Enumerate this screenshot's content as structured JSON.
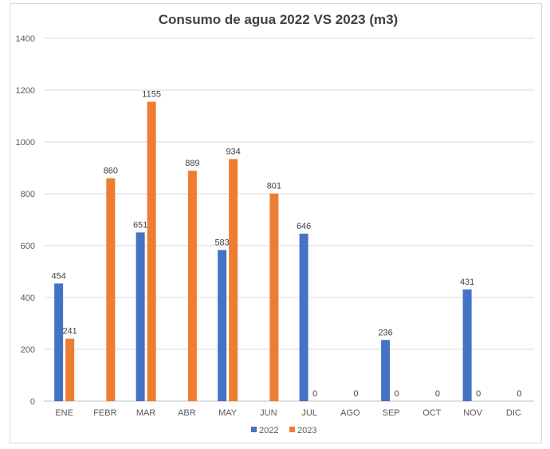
{
  "chart_data": {
    "type": "bar",
    "title": "Consumo de agua 2022 VS 2023 (m3)",
    "xlabel": "",
    "ylabel": "",
    "ylim": [
      0,
      1400
    ],
    "yticks": [
      0,
      200,
      400,
      600,
      800,
      1000,
      1200,
      1400
    ],
    "grid": true,
    "legend": "bottom",
    "categories": [
      "ENE",
      "FEBR",
      "MAR",
      "ABR",
      "MAY",
      "JUN",
      "JUL",
      "AGO",
      "SEP",
      "OCT",
      "NOV",
      "DIC"
    ],
    "series": [
      {
        "name": "2022",
        "color": "#4472C4",
        "values": [
          454,
          null,
          651,
          null,
          583,
          null,
          646,
          null,
          236,
          null,
          431,
          null
        ]
      },
      {
        "name": "2023",
        "color": "#ED7D31",
        "values": [
          241,
          860,
          1155,
          889,
          934,
          801,
          0,
          0,
          0,
          0,
          0,
          0
        ]
      }
    ]
  }
}
